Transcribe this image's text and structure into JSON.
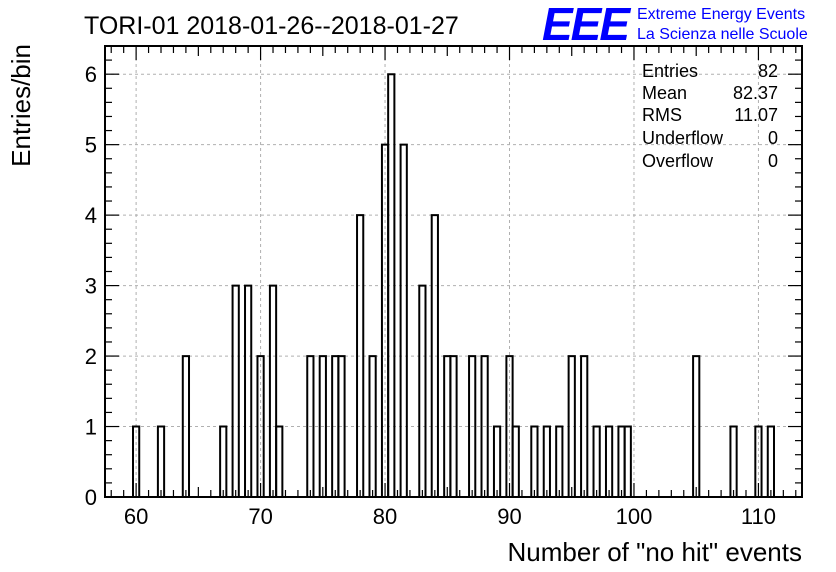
{
  "header": {
    "title": "TORI-01 2018-01-26--2018-01-27",
    "logo_text": "EEE",
    "logo_line1": "Extreme Energy Events",
    "logo_line2": "La Scienza nelle Scuole",
    "logo_color": "#0000ff"
  },
  "stats": {
    "rows": [
      {
        "label": "Entries",
        "value": "82"
      },
      {
        "label": "Mean",
        "value": "82.37"
      },
      {
        "label": "RMS",
        "value": "11.07"
      },
      {
        "label": "Underflow",
        "value": "0"
      },
      {
        "label": "Overflow",
        "value": "0"
      }
    ]
  },
  "chart_data": {
    "type": "bar",
    "title": "TORI-01 2018-01-26--2018-01-27",
    "xlabel": "Number of \"no hit\" events",
    "ylabel": "Entries/bin",
    "xlim": [
      57.5,
      113.5
    ],
    "ylim": [
      0,
      6.4
    ],
    "bin_width": 0.5,
    "grid": true,
    "x_ticks": [
      60,
      70,
      80,
      90,
      100,
      110
    ],
    "y_ticks": [
      0,
      1,
      2,
      3,
      4,
      5,
      6
    ],
    "bins": [
      {
        "x": 60,
        "value": 1
      },
      {
        "x": 62,
        "value": 1
      },
      {
        "x": 64,
        "value": 2
      },
      {
        "x": 67,
        "value": 1
      },
      {
        "x": 68,
        "value": 3
      },
      {
        "x": 69,
        "value": 3
      },
      {
        "x": 70,
        "value": 2
      },
      {
        "x": 71,
        "value": 3
      },
      {
        "x": 71.5,
        "value": 1
      },
      {
        "x": 74,
        "value": 2
      },
      {
        "x": 75,
        "value": 2
      },
      {
        "x": 76,
        "value": 2
      },
      {
        "x": 76.5,
        "value": 2
      },
      {
        "x": 78,
        "value": 4
      },
      {
        "x": 79,
        "value": 2
      },
      {
        "x": 80,
        "value": 5
      },
      {
        "x": 80.5,
        "value": 6
      },
      {
        "x": 81.5,
        "value": 5
      },
      {
        "x": 83,
        "value": 3
      },
      {
        "x": 84,
        "value": 4
      },
      {
        "x": 85,
        "value": 2
      },
      {
        "x": 85.5,
        "value": 2
      },
      {
        "x": 87,
        "value": 2
      },
      {
        "x": 88,
        "value": 2
      },
      {
        "x": 89,
        "value": 1
      },
      {
        "x": 90,
        "value": 2
      },
      {
        "x": 90.5,
        "value": 1
      },
      {
        "x": 92,
        "value": 1
      },
      {
        "x": 93,
        "value": 1
      },
      {
        "x": 94,
        "value": 1
      },
      {
        "x": 95,
        "value": 2
      },
      {
        "x": 96,
        "value": 2
      },
      {
        "x": 97,
        "value": 1
      },
      {
        "x": 98,
        "value": 1
      },
      {
        "x": 99,
        "value": 1
      },
      {
        "x": 99.5,
        "value": 1
      },
      {
        "x": 105,
        "value": 2
      },
      {
        "x": 108,
        "value": 1
      },
      {
        "x": 110,
        "value": 1
      },
      {
        "x": 111,
        "value": 1
      }
    ],
    "line_color": "#000000"
  }
}
